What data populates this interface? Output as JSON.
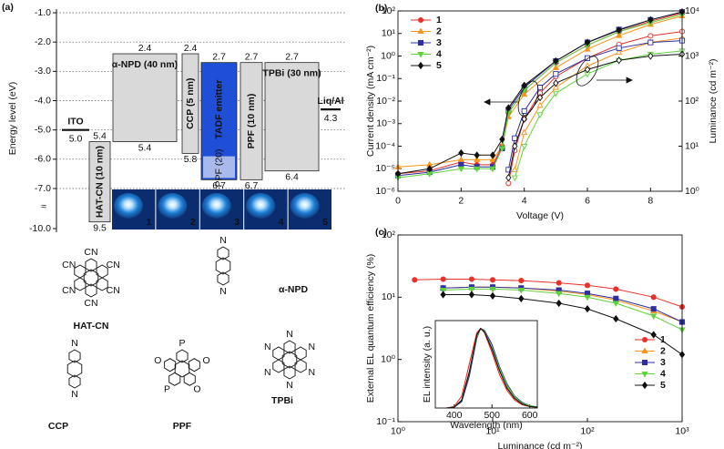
{
  "chart_data": [
    {
      "type": "energy-level",
      "panel_label": "(a)",
      "ylabel": "Energy level (eV)",
      "ylim": [
        -10,
        -1
      ],
      "yticks": [
        {
          "value": -1,
          "label": "-1.0"
        },
        {
          "value": -2,
          "label": "-2.0"
        },
        {
          "value": -3,
          "label": "-3.0"
        },
        {
          "value": -4,
          "label": "-4.0"
        },
        {
          "value": -5,
          "label": "-5.0"
        },
        {
          "value": -6,
          "label": "-6.0"
        },
        {
          "value": -7,
          "label": "-7.0"
        },
        {
          "value": -10,
          "label": "-10.0"
        }
      ],
      "grid": true,
      "layers": [
        {
          "name": "ITO",
          "kind": "electrode",
          "level": {
            "value": -5.0,
            "label": "5.0"
          }
        },
        {
          "name": "HAT-CN (10 nm)",
          "lumo": {
            "value": -5.4,
            "label": "5.4"
          },
          "homo": {
            "value": -9.5,
            "label": "9.5"
          },
          "color": "#d9d9d9"
        },
        {
          "name": "α-NPD (40 nm)",
          "lumo": {
            "value": -2.4,
            "label": "2.4"
          },
          "homo": {
            "value": -5.4,
            "label": "5.4"
          },
          "color": "#d9d9d9"
        },
        {
          "name": "CCP (5 nm)",
          "lumo": {
            "value": -2.4,
            "label": "2.4"
          },
          "homo": {
            "value": -5.8,
            "label": "5.8"
          },
          "color": "#d9d9d9"
        },
        {
          "name": "TADF emitter",
          "lumo": {
            "value": -2.7,
            "label": "2.7"
          },
          "homo": {
            "value": -6.7,
            "label": "6.7"
          },
          "color": "#1f4fd6",
          "host": "PPF (20)",
          "host_color": "#a9b9ec"
        },
        {
          "name": "PPF (10 nm)",
          "lumo": {
            "value": -2.7,
            "label": "2.7"
          },
          "homo": {
            "value": -6.7,
            "label": "6.7"
          },
          "color": "#d9d9d9"
        },
        {
          "name": "TPBi (30 nm)",
          "lumo": {
            "value": -2.7,
            "label": "2.7"
          },
          "homo": {
            "value": -6.4,
            "label": "6.4"
          },
          "color": "#d9d9d9"
        },
        {
          "name": "Liq/Al",
          "kind": "electrode",
          "level": {
            "value": -4.3,
            "label": "4.3"
          }
        }
      ],
      "devices": [
        "1",
        "2",
        "3",
        "4",
        "5"
      ],
      "molecules": [
        {
          "name": "HAT-CN",
          "atoms": [
            "CN",
            "CN",
            "CN",
            "CN",
            "CN",
            "CN"
          ]
        },
        {
          "name": "α-NPD",
          "atoms": [
            "N",
            "N"
          ]
        },
        {
          "name": "CCP",
          "atoms": [
            "N",
            "N"
          ]
        },
        {
          "name": "PPF",
          "atoms": [
            "P",
            "O",
            "O",
            "P",
            "O"
          ]
        },
        {
          "name": "TPBi",
          "atoms": [
            "N",
            "N",
            "N",
            "N",
            "N",
            "N"
          ]
        }
      ]
    },
    {
      "type": "line",
      "panel_label": "(b)",
      "xlabel": "Voltage (V)",
      "ylabel": "Current density (mA cm⁻²)",
      "y2label": "Luminance (cd m⁻²)",
      "xscale": "linear",
      "yscale": "log",
      "y2scale": "log",
      "xlim": [
        0,
        9
      ],
      "xticks": [
        0,
        2,
        4,
        6,
        8
      ],
      "ylim": [
        1e-06,
        100
      ],
      "yticks": [
        {
          "value": 1e-06,
          "label": "10⁻⁶"
        },
        {
          "value": 1e-05,
          "label": "10⁻⁵"
        },
        {
          "value": 0.0001,
          "label": "10⁻⁴"
        },
        {
          "value": 0.001,
          "label": "10⁻³"
        },
        {
          "value": 0.01,
          "label": "10⁻²"
        },
        {
          "value": 0.1,
          "label": "10⁻¹"
        },
        {
          "value": 1,
          "label": "10⁰"
        },
        {
          "value": 10,
          "label": "10¹"
        },
        {
          "value": 100,
          "label": "10²"
        }
      ],
      "y2lim": [
        1,
        10000
      ],
      "y2ticks": [
        {
          "value": 1,
          "label": "10⁰"
        },
        {
          "value": 10,
          "label": "10¹"
        },
        {
          "value": 100,
          "label": "10²"
        },
        {
          "value": 1000,
          "label": "10³"
        },
        {
          "value": 10000,
          "label": "10⁴"
        }
      ],
      "legend": "upper left",
      "series": [
        {
          "name": "1",
          "color": "#e8312a",
          "marker": "o",
          "x": [
            0,
            1,
            2,
            2.5,
            3,
            3.3,
            3.5,
            4,
            5,
            6,
            7,
            8,
            9
          ],
          "values": [
            6e-06,
            8e-06,
            2e-05,
            1.5e-05,
            1.5e-05,
            0.0001,
            0.003,
            0.03,
            0.5,
            3,
            12,
            35,
            80
          ]
        },
        {
          "name": "2",
          "color": "#f7941d",
          "marker": "^",
          "x": [
            0,
            1,
            2,
            2.5,
            3,
            3.3,
            3.5,
            4,
            5,
            6,
            7,
            8,
            9
          ],
          "values": [
            1.2e-05,
            1.5e-05,
            2.5e-05,
            2.5e-05,
            2.5e-05,
            0.0001,
            0.002,
            0.02,
            0.3,
            2,
            8,
            25,
            60
          ]
        },
        {
          "name": "3",
          "color": "#2e2ea0",
          "marker": "s",
          "x": [
            0,
            1,
            2,
            2.5,
            3,
            3.3,
            3.5,
            4,
            5,
            6,
            7,
            8,
            9
          ],
          "values": [
            5e-06,
            7e-06,
            1.5e-05,
            1.2e-05,
            1.2e-05,
            8e-05,
            0.004,
            0.04,
            0.6,
            4,
            15,
            40,
            90
          ]
        },
        {
          "name": "4",
          "color": "#5fd23c",
          "marker": "v",
          "x": [
            0,
            1,
            2,
            2.5,
            3,
            3.3,
            3.5,
            4,
            5,
            6,
            7,
            8,
            9
          ],
          "values": [
            4e-06,
            6e-06,
            1e-05,
            1e-05,
            1e-05,
            8e-05,
            0.003,
            0.03,
            0.5,
            3,
            12,
            30,
            70
          ]
        },
        {
          "name": "5",
          "color": "#111111",
          "marker": "D",
          "x": [
            0,
            1,
            2,
            2.5,
            3,
            3.3,
            3.5,
            4,
            5,
            6,
            7,
            8,
            9
          ],
          "values": [
            6e-06,
            1e-05,
            5e-05,
            4e-05,
            4e-05,
            0.0002,
            0.005,
            0.05,
            0.6,
            4,
            14,
            40,
            90
          ]
        },
        {
          "color": "#e8312a",
          "marker": "o",
          "open": true,
          "axis": "y2",
          "x": [
            3.5,
            3.7,
            4,
            4.5,
            5,
            6,
            7,
            8,
            9
          ],
          "values": [
            1.5,
            8,
            40,
            150,
            350,
            900,
            1800,
            2800,
            3500
          ]
        },
        {
          "color": "#f7941d",
          "marker": "^",
          "open": true,
          "axis": "y2",
          "x": [
            3.5,
            3.7,
            4,
            4.5,
            5,
            6,
            7,
            8,
            9
          ],
          "values": [
            null,
            3,
            20,
            80,
            200,
            600,
            1200,
            2000,
            2500
          ]
        },
        {
          "color": "#2e2ea0",
          "marker": "s",
          "open": true,
          "axis": "y2",
          "x": [
            3.5,
            3.7,
            4,
            4.5,
            5,
            6,
            7,
            8,
            9
          ],
          "values": [
            3,
            15,
            60,
            200,
            400,
            900,
            1500,
            2000,
            2200
          ]
        },
        {
          "color": "#5fd23c",
          "marker": "v",
          "open": true,
          "axis": "y2",
          "x": [
            3.5,
            3.7,
            4,
            4.5,
            5,
            6,
            7,
            8,
            9
          ],
          "values": [
            null,
            2,
            10,
            50,
            150,
            400,
            800,
            1100,
            1300
          ]
        },
        {
          "color": "#111111",
          "marker": "D",
          "open": true,
          "axis": "y2",
          "x": [
            3.5,
            3.7,
            4,
            4.5,
            5,
            6,
            7,
            8,
            9
          ],
          "values": [
            2,
            10,
            40,
            120,
            250,
            500,
            800,
            1000,
            1100
          ]
        }
      ]
    },
    {
      "type": "line",
      "panel_label": "(c)",
      "xlabel": "Luminance (cd m⁻²)",
      "ylabel": "External EL quantum efficiency (%)",
      "xscale": "log",
      "yscale": "log",
      "xlim": [
        1,
        1000
      ],
      "xticks": [
        {
          "value": 1,
          "label": "10⁰"
        },
        {
          "value": 10,
          "label": "10¹"
        },
        {
          "value": 100,
          "label": "10²"
        },
        {
          "value": 1000,
          "label": "10³"
        }
      ],
      "ylim": [
        0.1,
        100
      ],
      "yticks": [
        {
          "value": 0.1,
          "label": "10⁻¹"
        },
        {
          "value": 1,
          "label": "10⁰"
        },
        {
          "value": 10,
          "label": "10¹"
        },
        {
          "value": 100,
          "label": "10²"
        }
      ],
      "legend": "lower right",
      "series": [
        {
          "name": "1",
          "color": "#e8312a",
          "marker": "o",
          "x": [
            1.5,
            3,
            6,
            10,
            20,
            50,
            100,
            200,
            500,
            1000
          ],
          "values": [
            19,
            19.5,
            19.5,
            19,
            18.5,
            17,
            15.5,
            13.5,
            10,
            7
          ]
        },
        {
          "name": "2",
          "color": "#f7941d",
          "marker": "^",
          "x": [
            1.5,
            3,
            6,
            10,
            20,
            50,
            100,
            200,
            500,
            1000
          ],
          "values": [
            null,
            14,
            14.5,
            14.5,
            14,
            12.5,
            11,
            9,
            6,
            4
          ]
        },
        {
          "name": "3",
          "color": "#2e2ea0",
          "marker": "s",
          "x": [
            1.5,
            3,
            6,
            10,
            20,
            50,
            100,
            200,
            500,
            1000
          ],
          "values": [
            null,
            14,
            14.5,
            14.5,
            14,
            13,
            11.5,
            9.5,
            6.5,
            4
          ]
        },
        {
          "name": "4",
          "color": "#5fd23c",
          "marker": "v",
          "x": [
            1.5,
            3,
            6,
            10,
            20,
            50,
            100,
            200,
            500,
            1000
          ],
          "values": [
            null,
            13,
            13.5,
            13.5,
            13,
            11.5,
            10,
            8,
            5,
            3
          ]
        },
        {
          "name": "5",
          "color": "#111111",
          "marker": "D",
          "x": [
            1.5,
            3,
            6,
            10,
            20,
            50,
            100,
            200,
            500,
            1000
          ],
          "values": [
            null,
            11,
            11,
            10.5,
            9.5,
            8,
            6.5,
            4.5,
            2.5,
            1.2
          ]
        }
      ]
    },
    {
      "type": "line",
      "xlabel": "Wavelength (nm)",
      "ylabel": "EL intensity (a. u.)",
      "xscale": "linear",
      "yscale": "linear",
      "xlim": [
        350,
        620
      ],
      "xticks": [
        400,
        500,
        600
      ],
      "ylim": [
        0,
        1.1
      ],
      "series": [
        {
          "color": "#e8312a",
          "x": [
            380,
            400,
            420,
            440,
            460,
            470,
            480,
            500,
            520,
            540,
            560,
            580,
            600,
            620
          ],
          "values": [
            0,
            0.02,
            0.15,
            0.55,
            0.95,
            1,
            0.95,
            0.7,
            0.42,
            0.22,
            0.1,
            0.04,
            0.02,
            0.01
          ]
        },
        {
          "color": "#f7941d",
          "x": [
            380,
            400,
            420,
            440,
            460,
            470,
            480,
            500,
            520,
            540,
            560,
            580,
            600,
            620
          ],
          "values": [
            0,
            0.01,
            0.1,
            0.45,
            0.9,
            1,
            0.97,
            0.75,
            0.48,
            0.26,
            0.13,
            0.06,
            0.03,
            0.01
          ]
        },
        {
          "color": "#2e2ea0",
          "x": [
            380,
            400,
            420,
            440,
            460,
            470,
            480,
            500,
            520,
            540,
            560,
            580,
            600,
            620
          ],
          "values": [
            0,
            0.01,
            0.08,
            0.4,
            0.88,
            1,
            0.98,
            0.8,
            0.52,
            0.3,
            0.15,
            0.07,
            0.03,
            0.01
          ]
        },
        {
          "color": "#5fd23c",
          "x": [
            380,
            400,
            420,
            440,
            460,
            470,
            480,
            500,
            520,
            540,
            560,
            580,
            600,
            620
          ],
          "values": [
            0,
            0.01,
            0.1,
            0.45,
            0.9,
            1,
            0.97,
            0.76,
            0.5,
            0.28,
            0.14,
            0.06,
            0.03,
            0.01
          ]
        },
        {
          "color": "#111111",
          "x": [
            380,
            400,
            420,
            440,
            460,
            470,
            480,
            500,
            520,
            540,
            560,
            580,
            600,
            620
          ],
          "values": [
            0,
            0.01,
            0.1,
            0.45,
            0.92,
            1,
            0.96,
            0.74,
            0.47,
            0.25,
            0.12,
            0.05,
            0.02,
            0.01
          ]
        }
      ]
    }
  ]
}
